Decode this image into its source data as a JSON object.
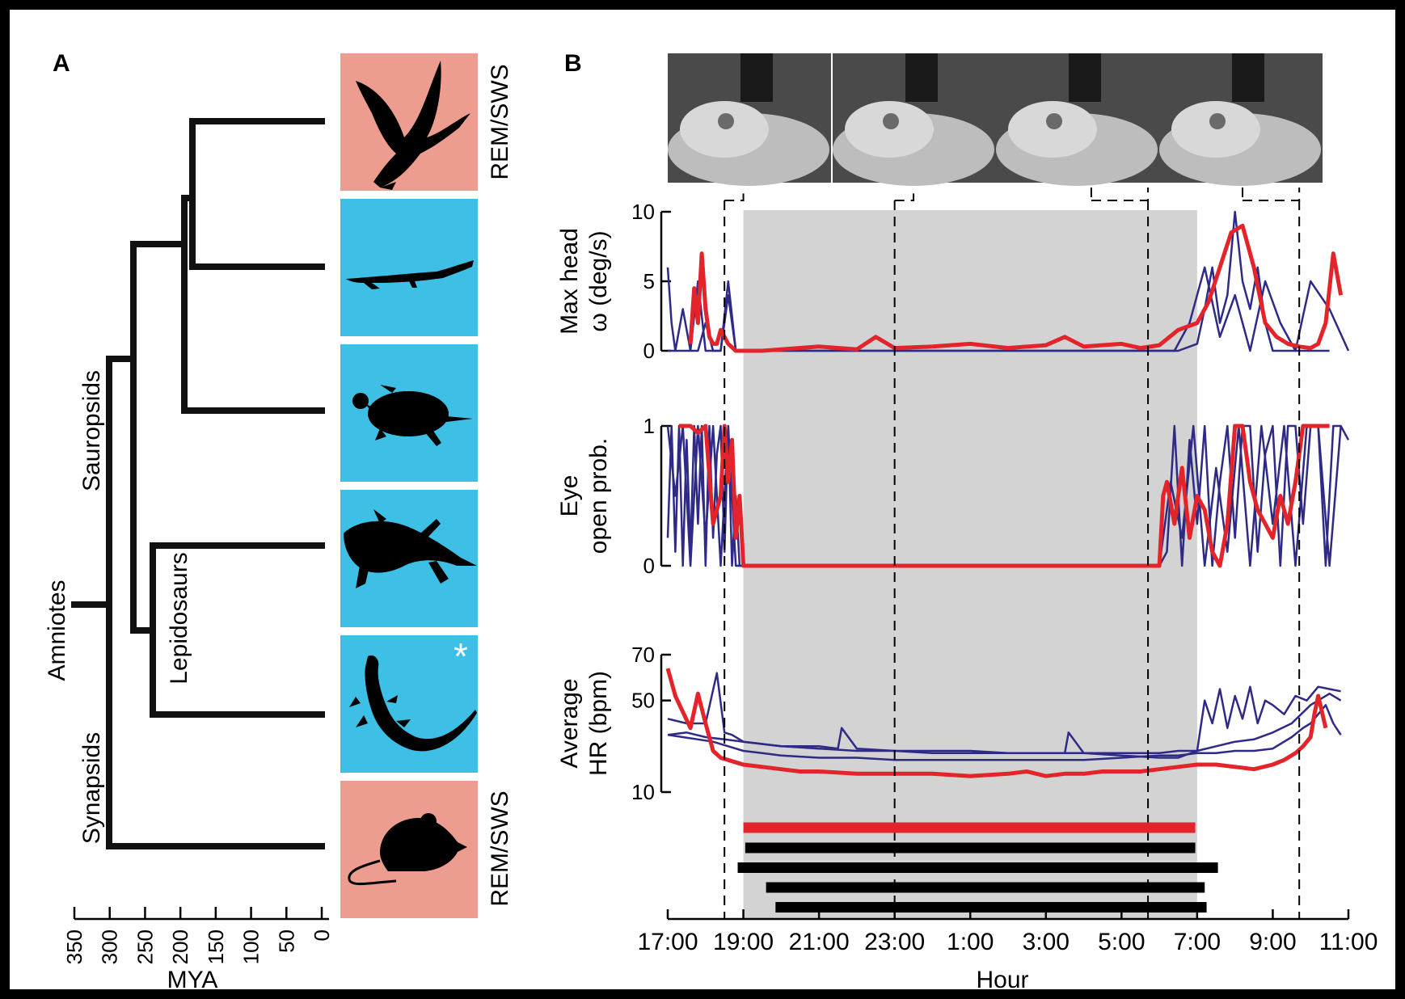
{
  "panel_a": {
    "letter": "A",
    "clade_labels": {
      "amniotes": "Amniotes",
      "sauropsids": "Sauropsids",
      "lepidosaurs": "Lepidosaurs",
      "synapsids": "Synapsids"
    },
    "state_labels": [
      "REM/SWS",
      "REM/SWS"
    ],
    "asterisk": "*",
    "axis_label": "MYA",
    "ticks": [
      "350",
      "300",
      "250",
      "200",
      "150",
      "100",
      "50",
      "0"
    ],
    "animals": [
      "bird-icon",
      "crocodile-icon",
      "turtle-icon",
      "tuatara-icon",
      "lizard-icon",
      "mouse-icon"
    ],
    "colors": {
      "mammal_bird": "#ec9d8f",
      "reptile": "#3dbfe6"
    }
  },
  "panel_b": {
    "letter": "B",
    "x_label": "Hour",
    "x_ticks": [
      "17:00",
      "19:00",
      "21:00",
      "23:00",
      "1:00",
      "3:00",
      "5:00",
      "7:00",
      "9:00",
      "11:00"
    ],
    "colors": {
      "individual": "#2e2a86",
      "mean": "#e3242b",
      "night": "#d3d3d3"
    },
    "photo_icons": [
      "lizard-photo-icon",
      "lizard-photo-icon",
      "lizard-photo-icon",
      "lizard-photo-icon"
    ]
  },
  "chart_data": [
    {
      "type": "line",
      "title": "",
      "ylabel": "Max head ω (deg/s)",
      "ylabel_lines": [
        "Max head",
        "ω (deg/s)"
      ],
      "y_ticks": [
        "10",
        "5",
        "0"
      ],
      "ylim": [
        0,
        10
      ],
      "x_range_hours": [
        17,
        35
      ],
      "series": [
        {
          "x": [
            17,
            17.1,
            17.2,
            17.3,
            17.4,
            17.6,
            17.8,
            18,
            18.2,
            18.4,
            18.6,
            18.8,
            19,
            20,
            21,
            22,
            23,
            24,
            25,
            26,
            27,
            28,
            29,
            30,
            30.5,
            31,
            31.2,
            31.4,
            31.6,
            31.8,
            32,
            32.2,
            32.4,
            32.6,
            32.8,
            33,
            33.4,
            33.8,
            34,
            34.2,
            34.5
          ],
          "y": [
            6,
            2,
            0,
            0,
            0,
            0,
            5,
            0,
            0,
            0,
            4,
            0,
            0,
            0,
            0,
            0,
            0,
            0,
            0,
            0,
            0,
            0,
            0,
            0,
            0,
            0.5,
            3,
            6,
            2,
            4,
            10,
            5,
            3,
            6,
            2,
            0,
            0,
            0,
            0,
            0,
            0
          ]
        },
        {
          "x": [
            17,
            17.2,
            17.4,
            17.6,
            17.8,
            18,
            18.2,
            18.4,
            18.6,
            18.8,
            19,
            20,
            21,
            22,
            23,
            24,
            25,
            26,
            27,
            28,
            29,
            30,
            30.4,
            30.8,
            31.2,
            31.6,
            32,
            32.4,
            32.8,
            33.2,
            33.6,
            34,
            34.5,
            35
          ],
          "y": [
            0,
            0,
            3,
            0,
            0,
            2,
            0,
            0,
            5,
            0,
            0,
            0,
            0,
            0,
            0,
            0,
            0,
            0,
            0,
            0,
            0,
            0,
            0,
            2,
            6,
            1,
            4,
            0,
            5,
            2,
            0,
            5,
            3,
            0
          ]
        },
        {
          "x": [
            17.6,
            17.7,
            17.8,
            17.9,
            18,
            18.1,
            18.2,
            18.3,
            18.4,
            18.6,
            18.8,
            19,
            19.5,
            20,
            21,
            22,
            22.5,
            23,
            24,
            25,
            26,
            27,
            27.5,
            28,
            29,
            29.5,
            30,
            30.5,
            31,
            31.3,
            31.6,
            31.9,
            32.2,
            32.5,
            32.8,
            33.1,
            33.4,
            33.7,
            34,
            34.2,
            34.4,
            34.6,
            34.8
          ],
          "y": [
            0.5,
            4.5,
            2,
            7,
            3,
            1,
            0.5,
            0.5,
            1.5,
            0.5,
            0,
            0,
            0,
            0.1,
            0.3,
            0.1,
            1,
            0.2,
            0.3,
            0.5,
            0.2,
            0.4,
            1,
            0.3,
            0.5,
            0.2,
            0.4,
            1.5,
            2,
            3.5,
            6,
            8.5,
            9,
            6,
            2,
            1,
            0.5,
            0.3,
            0.2,
            0.5,
            2,
            7,
            4
          ]
        }
      ],
      "series_styles": [
        "individual",
        "individual",
        "mean"
      ]
    },
    {
      "type": "line",
      "title": "",
      "ylabel": "Eye open prob.",
      "ylabel_lines": [
        "Eye",
        "open prob."
      ],
      "y_ticks": [
        "1",
        "0"
      ],
      "ylim": [
        0,
        1
      ],
      "x_range_hours": [
        17,
        35
      ],
      "series": [
        {
          "x": [
            17,
            17.1,
            17.2,
            17.3,
            17.4,
            17.5,
            17.6,
            17.7,
            17.8,
            17.9,
            18,
            18.1,
            18.2,
            18.3,
            18.4,
            18.5,
            18.6,
            18.7,
            18.8,
            18.9,
            19,
            30,
            30.2,
            30.4,
            30.6,
            30.8,
            31,
            31.2,
            31.4,
            31.6,
            31.8,
            32,
            32.2,
            32.4,
            32.6,
            32.8,
            33,
            33.2,
            33.4,
            33.6,
            33.8,
            34,
            34.2,
            34.4,
            34.6,
            34.8,
            35
          ],
          "y": [
            0.2,
            1,
            0.1,
            1,
            0,
            0.9,
            0.1,
            1,
            0.3,
            1,
            0,
            1,
            0.2,
            0.8,
            1,
            0.1,
            1,
            0,
            0.5,
            0,
            0,
            0,
            0.1,
            1,
            0,
            0.9,
            0.3,
            1,
            0,
            0.6,
            1,
            0.2,
            1,
            1,
            0.1,
            0.8,
            1,
            0,
            1,
            1,
            0.3,
            1,
            1,
            0,
            1,
            1,
            0.9
          ]
        },
        {
          "x": [
            17,
            17.2,
            17.4,
            17.6,
            17.8,
            18,
            18.2,
            18.4,
            18.6,
            18.8,
            19,
            30,
            30.3,
            30.6,
            30.9,
            31.2,
            31.5,
            31.8,
            32.1,
            32.4,
            32.7,
            33,
            33.3,
            33.6,
            33.9,
            34.2,
            34.5,
            34.8
          ],
          "y": [
            1,
            0.5,
            1,
            0,
            1,
            0.2,
            1,
            0,
            1,
            0,
            0,
            0,
            0.6,
            0.2,
            1,
            0,
            0.7,
            0.1,
            1,
            0,
            1,
            0.3,
            1,
            0,
            1,
            1,
            0,
            1
          ]
        },
        {
          "x": [
            17.3,
            17.4,
            17.6,
            17.8,
            18,
            18.2,
            18.4,
            18.5,
            18.6,
            18.7,
            18.8,
            18.9,
            19,
            30,
            30.1,
            30.2,
            30.4,
            30.6,
            30.8,
            31,
            31.2,
            31.4,
            31.6,
            31.8,
            32,
            32.2,
            32.4,
            32.6,
            32.8,
            33,
            33.2,
            33.4,
            33.6,
            33.8,
            34,
            34.5
          ],
          "y": [
            1,
            1,
            1,
            0.95,
            1,
            0.3,
            0.5,
            1,
            0.6,
            0.9,
            0.2,
            0.5,
            0,
            0,
            0.5,
            0.6,
            0.3,
            0.7,
            0.2,
            0.5,
            0.4,
            0.1,
            0,
            0.3,
            1,
            1,
            0.6,
            0.4,
            0.3,
            0.2,
            0.5,
            0.3,
            0.6,
            1,
            1,
            1
          ]
        }
      ],
      "series_styles": [
        "individual",
        "individual",
        "mean"
      ]
    },
    {
      "type": "line",
      "title": "",
      "ylabel": "Average HR (bpm)",
      "ylabel_lines": [
        "Average",
        "HR (bpm)"
      ],
      "y_ticks": [
        "70",
        "50",
        "10"
      ],
      "ylim": [
        10,
        70
      ],
      "x_range_hours": [
        17,
        35
      ],
      "series": [
        {
          "x": [
            17,
            17.5,
            18,
            18.3,
            18.5,
            18.7,
            19,
            20,
            21,
            21.5,
            21.6,
            22,
            23,
            24,
            25,
            26,
            27,
            27.5,
            27.6,
            28,
            29,
            30,
            30.5,
            31,
            31.2,
            31.4,
            31.6,
            31.8,
            32,
            32.2,
            32.4,
            32.6,
            32.8,
            33,
            33.3,
            33.6,
            33.9,
            34.2,
            34.5,
            34.8
          ],
          "y": [
            42,
            40,
            40,
            62,
            36,
            35,
            32,
            30,
            30,
            29,
            38,
            29,
            28,
            28,
            28,
            27,
            27,
            27,
            36,
            27,
            26,
            25,
            25,
            28,
            50,
            40,
            55,
            38,
            52,
            42,
            56,
            40,
            50,
            48,
            44,
            52,
            50,
            56,
            55,
            54
          ]
        },
        {
          "x": [
            17,
            17.5,
            18,
            18.5,
            19,
            20,
            21,
            22,
            23,
            24,
            25,
            26,
            27,
            28,
            29,
            30,
            30.5,
            31,
            31.5,
            32,
            32.5,
            33,
            33.5,
            34,
            34.5,
            34.8
          ],
          "y": [
            35,
            36,
            34,
            33,
            32,
            30,
            29,
            28,
            28,
            27,
            27,
            27,
            27,
            27,
            27,
            27,
            28,
            28,
            30,
            32,
            33,
            36,
            40,
            48,
            53,
            50
          ]
        },
        {
          "x": [
            17,
            17.4,
            17.8,
            18.2,
            18.6,
            19,
            19.5,
            20,
            21,
            22,
            23,
            24,
            25,
            26,
            27,
            28,
            29,
            30,
            30.5,
            31,
            31.5,
            32,
            32.5,
            33,
            33.5,
            33.8,
            34,
            34.2,
            34.4,
            34.6,
            34.8
          ],
          "y": [
            35,
            34,
            33,
            32,
            30,
            28,
            27,
            26,
            25,
            25,
            24,
            24,
            24,
            24,
            24,
            24,
            25,
            26,
            26,
            27,
            27,
            28,
            28,
            29,
            34,
            38,
            40,
            44,
            48,
            40,
            35
          ]
        },
        {
          "x": [
            17,
            17.2,
            17.4,
            17.6,
            17.8,
            18,
            18.2,
            18.4,
            18.6,
            18.8,
            19,
            19.5,
            20,
            20.5,
            21,
            22,
            23,
            24,
            25,
            26,
            26.5,
            27,
            27.5,
            28,
            28.5,
            29,
            29.5,
            30,
            30.5,
            31,
            31.5,
            32,
            32.5,
            33,
            33.3,
            33.6,
            33.8,
            34,
            34.1,
            34.2,
            34.3,
            34.4
          ],
          "y": [
            64,
            52,
            45,
            38,
            53,
            40,
            28,
            25,
            24,
            23,
            22,
            21,
            20,
            19,
            19,
            18,
            18,
            18,
            17,
            18,
            19,
            17,
            18,
            18,
            19,
            19,
            19,
            20,
            21,
            22,
            22,
            21,
            20,
            22,
            24,
            27,
            30,
            34,
            44,
            52,
            45,
            38
          ]
        }
      ],
      "series_styles": [
        "individual",
        "individual",
        "individual",
        "mean"
      ]
    }
  ],
  "sleep_bars": {
    "mean": {
      "start": 19.0,
      "end": 30.95
    },
    "individuals": [
      {
        "start": 19.05,
        "end": 30.95
      },
      {
        "start": 18.85,
        "end": 31.55
      },
      {
        "start": 19.6,
        "end": 31.2
      },
      {
        "start": 19.85,
        "end": 31.25
      }
    ]
  }
}
